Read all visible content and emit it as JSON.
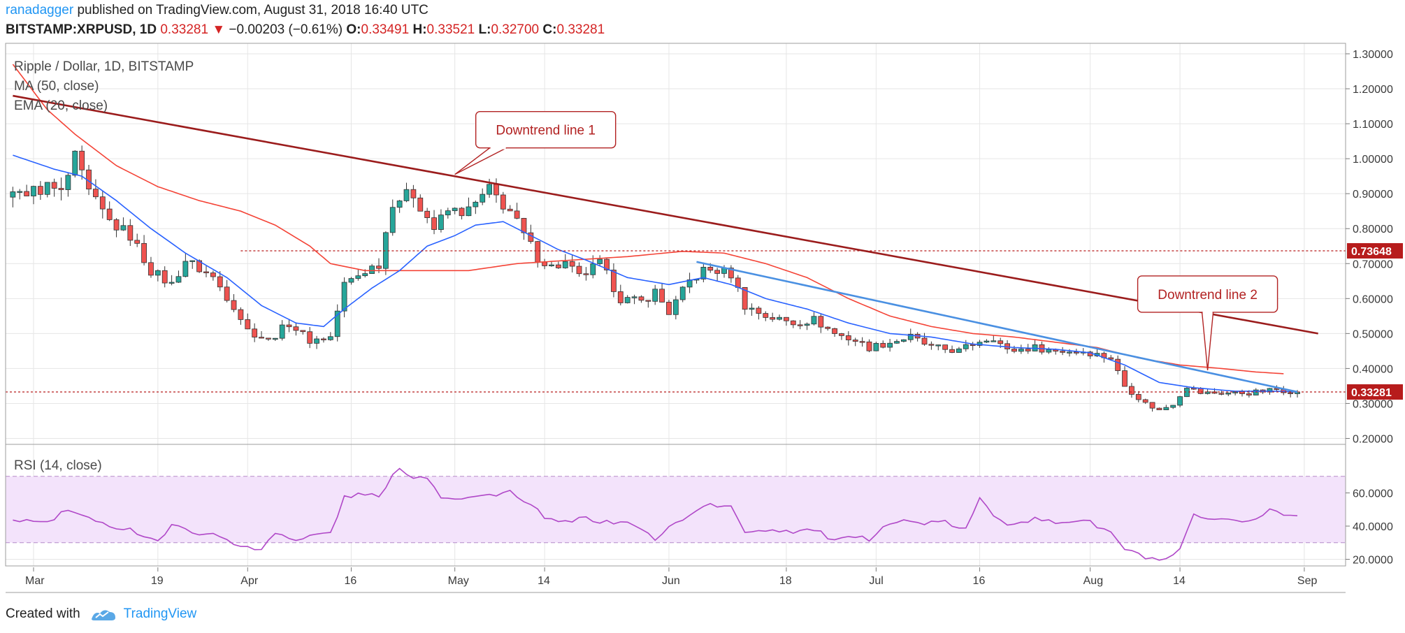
{
  "header": {
    "author": "ranadagger",
    "published": " published on TradingView.com, August 31, 2018 16:40 UTC",
    "symbol": "BITSTAMP:XRPUSD",
    "interval": ", 1D",
    "last": "0.33281",
    "change_arrow": "▼",
    "change": "−0.00203 (−0.61%)",
    "o_label": "O:",
    "o": "0.33491",
    "h_label": "H:",
    "h": "0.33521",
    "l_label": "L:",
    "l": "0.32700",
    "c_label": "C:",
    "c": "0.33281"
  },
  "footer": {
    "created_with": "Created with",
    "brand": "TradingView"
  },
  "colors": {
    "candle_up": "#26a69a",
    "candle_down": "#ef5350",
    "candle_outline": "#333333",
    "ma50": "#f44336",
    "ema20": "#2962ff",
    "trend1": "#9b1c1c",
    "trend2": "#4a90e2",
    "rsi": "#b048c8",
    "rsi_band": "#f3e3fb",
    "price_tag": "#b71c1c",
    "grid": "#e6e6e6"
  },
  "chart_data": [
    {
      "type": "candlestick",
      "title": "Ripple / Dollar, 1D, BITSTAMP",
      "legend": [
        "MA (50, close)",
        "EMA (20, close)"
      ],
      "y_ticks": [
        "1.30000",
        "1.20000",
        "1.10000",
        "1.00000",
        "0.90000",
        "0.80000",
        "0.70000",
        "0.60000",
        "0.50000",
        "0.40000",
        "0.30000",
        "0.20000"
      ],
      "y_range": [
        0.185,
        1.31
      ],
      "x_ticks": [
        "Mar",
        "19",
        "Apr",
        "16",
        "May",
        "14",
        "Jun",
        "18",
        "Jul",
        "16",
        "Aug",
        "14",
        "Sep"
      ],
      "x_tick_days": [
        0,
        18,
        31,
        46,
        61,
        74,
        92,
        109,
        122,
        137,
        153,
        166,
        184
      ],
      "horizontal_levels": [
        {
          "value": 0.73648,
          "label": "0.73648"
        },
        {
          "value": 0.33281,
          "label": "0.33281"
        }
      ],
      "trendlines": [
        {
          "name": "Downtrend line 1",
          "from": [
            -3,
            1.18
          ],
          "to": [
            186,
            0.5
          ]
        },
        {
          "name": "Downtrend line 2",
          "from": [
            96,
            0.705
          ],
          "to": [
            183,
            0.333
          ]
        }
      ],
      "annotations": [
        {
          "text": "Downtrend line 1",
          "point": [
            61,
            0.955
          ]
        },
        {
          "text": "Downtrend line 2",
          "point": [
            170,
            0.395
          ]
        }
      ],
      "anchors": [
        [
          -3,
          0.89
        ],
        [
          2,
          0.92
        ],
        [
          4,
          0.9
        ],
        [
          6,
          1.0
        ],
        [
          8,
          0.9
        ],
        [
          11,
          0.82
        ],
        [
          14,
          0.78
        ],
        [
          17,
          0.68
        ],
        [
          20,
          0.64
        ],
        [
          22,
          0.71
        ],
        [
          26,
          0.66
        ],
        [
          29,
          0.58
        ],
        [
          31,
          0.51
        ],
        [
          34,
          0.48
        ],
        [
          37,
          0.53
        ],
        [
          40,
          0.48
        ],
        [
          43,
          0.49
        ],
        [
          45,
          0.64
        ],
        [
          48,
          0.68
        ],
        [
          50,
          0.7
        ],
        [
          52,
          0.88
        ],
        [
          55,
          0.9
        ],
        [
          58,
          0.8
        ],
        [
          60,
          0.85
        ],
        [
          63,
          0.85
        ],
        [
          66,
          0.91
        ],
        [
          69,
          0.85
        ],
        [
          71,
          0.78
        ],
        [
          73,
          0.72
        ],
        [
          75,
          0.69
        ],
        [
          77,
          0.7
        ],
        [
          79,
          0.66
        ],
        [
          82,
          0.7
        ],
        [
          85,
          0.6
        ],
        [
          88,
          0.59
        ],
        [
          90,
          0.62
        ],
        [
          92,
          0.56
        ],
        [
          95,
          0.65
        ],
        [
          97,
          0.68
        ],
        [
          99,
          0.68
        ],
        [
          101,
          0.67
        ],
        [
          103,
          0.58
        ],
        [
          106,
          0.55
        ],
        [
          110,
          0.53
        ],
        [
          113,
          0.54
        ],
        [
          116,
          0.5
        ],
        [
          119,
          0.48
        ],
        [
          121,
          0.46
        ],
        [
          123,
          0.47
        ],
        [
          125,
          0.48
        ],
        [
          127,
          0.49
        ],
        [
          130,
          0.46
        ],
        [
          134,
          0.45
        ],
        [
          137,
          0.48
        ],
        [
          139,
          0.49
        ],
        [
          141,
          0.45
        ],
        [
          145,
          0.46
        ],
        [
          148,
          0.45
        ],
        [
          152,
          0.45
        ],
        [
          156,
          0.43
        ],
        [
          158,
          0.35
        ],
        [
          161,
          0.3
        ],
        [
          163,
          0.28
        ],
        [
          165,
          0.3
        ],
        [
          167,
          0.35
        ],
        [
          169,
          0.33
        ],
        [
          172,
          0.33
        ],
        [
          176,
          0.33
        ],
        [
          180,
          0.34
        ],
        [
          183,
          0.333
        ]
      ],
      "ema20_anchors": [
        [
          -3,
          1.01
        ],
        [
          3,
          0.97
        ],
        [
          7,
          0.95
        ],
        [
          12,
          0.88
        ],
        [
          17,
          0.8
        ],
        [
          22,
          0.73
        ],
        [
          28,
          0.66
        ],
        [
          33,
          0.58
        ],
        [
          38,
          0.53
        ],
        [
          42,
          0.52
        ],
        [
          45,
          0.57
        ],
        [
          49,
          0.63
        ],
        [
          53,
          0.68
        ],
        [
          57,
          0.75
        ],
        [
          61,
          0.78
        ],
        [
          64,
          0.81
        ],
        [
          68,
          0.82
        ],
        [
          72,
          0.78
        ],
        [
          76,
          0.74
        ],
        [
          80,
          0.71
        ],
        [
          86,
          0.66
        ],
        [
          92,
          0.64
        ],
        [
          97,
          0.66
        ],
        [
          101,
          0.64
        ],
        [
          106,
          0.6
        ],
        [
          112,
          0.57
        ],
        [
          118,
          0.53
        ],
        [
          124,
          0.5
        ],
        [
          130,
          0.49
        ],
        [
          136,
          0.47
        ],
        [
          142,
          0.46
        ],
        [
          148,
          0.455
        ],
        [
          153,
          0.445
        ],
        [
          158,
          0.41
        ],
        [
          163,
          0.36
        ],
        [
          168,
          0.345
        ],
        [
          174,
          0.335
        ],
        [
          180,
          0.335
        ],
        [
          183,
          0.333
        ]
      ],
      "ma50_anchors": [
        [
          -3,
          1.27
        ],
        [
          2,
          1.14
        ],
        [
          6,
          1.07
        ],
        [
          12,
          0.98
        ],
        [
          18,
          0.92
        ],
        [
          24,
          0.88
        ],
        [
          30,
          0.85
        ],
        [
          35,
          0.81
        ],
        [
          40,
          0.75
        ],
        [
          43,
          0.7
        ],
        [
          48,
          0.68
        ],
        [
          56,
          0.68
        ],
        [
          63,
          0.68
        ],
        [
          70,
          0.7
        ],
        [
          78,
          0.71
        ],
        [
          86,
          0.72
        ],
        [
          94,
          0.735
        ],
        [
          100,
          0.73
        ],
        [
          106,
          0.7
        ],
        [
          112,
          0.66
        ],
        [
          118,
          0.6
        ],
        [
          124,
          0.55
        ],
        [
          130,
          0.52
        ],
        [
          136,
          0.5
        ],
        [
          142,
          0.49
        ],
        [
          148,
          0.475
        ],
        [
          154,
          0.46
        ],
        [
          160,
          0.43
        ],
        [
          166,
          0.41
        ],
        [
          172,
          0.4
        ],
        [
          177,
          0.39
        ],
        [
          181,
          0.385
        ]
      ]
    },
    {
      "type": "line",
      "title": "RSI (14, close)",
      "y_ticks": [
        "60.0000",
        "40.0000",
        "20.0000"
      ],
      "y_range": [
        16,
        80
      ],
      "bands": [
        30,
        70
      ],
      "anchors": [
        [
          -3,
          44
        ],
        [
          2,
          42
        ],
        [
          5,
          50
        ],
        [
          9,
          42
        ],
        [
          14,
          38
        ],
        [
          18,
          31
        ],
        [
          20,
          40
        ],
        [
          24,
          36
        ],
        [
          28,
          33
        ],
        [
          30,
          27
        ],
        [
          33,
          26
        ],
        [
          35,
          37
        ],
        [
          38,
          31
        ],
        [
          41,
          35
        ],
        [
          43,
          36
        ],
        [
          45,
          57
        ],
        [
          48,
          60
        ],
        [
          50,
          57
        ],
        [
          53,
          76
        ],
        [
          55,
          69
        ],
        [
          57,
          70
        ],
        [
          59,
          58
        ],
        [
          62,
          57
        ],
        [
          65,
          58
        ],
        [
          69,
          61
        ],
        [
          70,
          57
        ],
        [
          73,
          49
        ],
        [
          75,
          43
        ],
        [
          77,
          42
        ],
        [
          80,
          45
        ],
        [
          83,
          42
        ],
        [
          85,
          43
        ],
        [
          88,
          39
        ],
        [
          90,
          31
        ],
        [
          93,
          43
        ],
        [
          95,
          46
        ],
        [
          97,
          53
        ],
        [
          99,
          52
        ],
        [
          101,
          51
        ],
        [
          103,
          37
        ],
        [
          106,
          38
        ],
        [
          110,
          37
        ],
        [
          113,
          38
        ],
        [
          116,
          31
        ],
        [
          119,
          33
        ],
        [
          121,
          32
        ],
        [
          123,
          41
        ],
        [
          126,
          43
        ],
        [
          128,
          42
        ],
        [
          132,
          42
        ],
        [
          135,
          38
        ],
        [
          137,
          56
        ],
        [
          139,
          47
        ],
        [
          141,
          42
        ],
        [
          145,
          44
        ],
        [
          148,
          42
        ],
        [
          152,
          44
        ],
        [
          156,
          36
        ],
        [
          158,
          26
        ],
        [
          161,
          21
        ],
        [
          164,
          19
        ],
        [
          166,
          25
        ],
        [
          168,
          47
        ],
        [
          170,
          43
        ],
        [
          173,
          43
        ],
        [
          177,
          44
        ],
        [
          179,
          50
        ],
        [
          181,
          47
        ],
        [
          183,
          46
        ]
      ]
    }
  ]
}
